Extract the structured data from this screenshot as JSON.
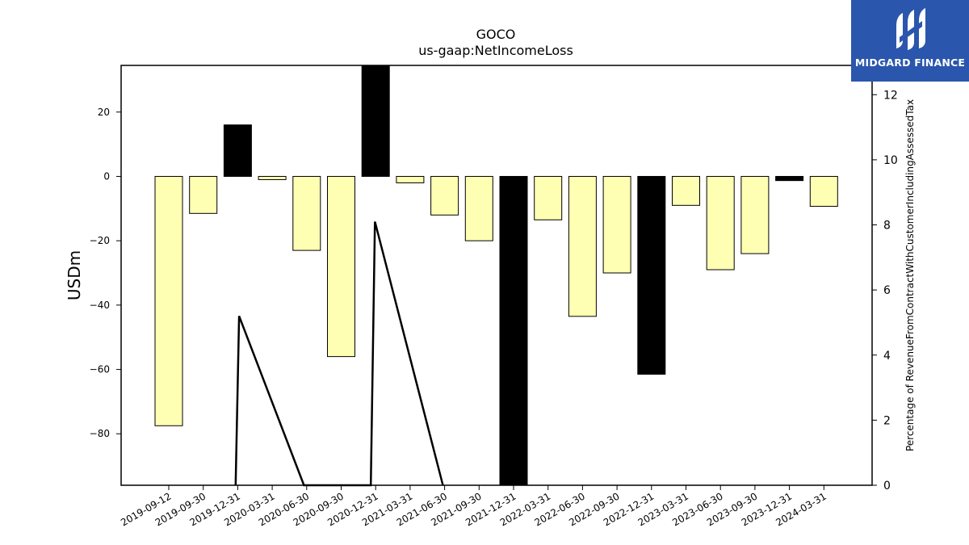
{
  "chart_data": {
    "type": "bar",
    "title": "GOCO",
    "subtitle": "us-gaap:NetIncomeLoss",
    "ylabel": "USDm",
    "y2label": "Percentage of RevenueFromContractWithCustomerIncludingAssessedTax",
    "ylim": [
      -96,
      34.5
    ],
    "y2lim": [
      0,
      12.9
    ],
    "yticks": [
      -80,
      -60,
      -40,
      -20,
      0,
      20
    ],
    "y2ticks": [
      0,
      2,
      4,
      6,
      8,
      10,
      12
    ],
    "categories": [
      "2019-09-12",
      "2019-09-30",
      "2019-12-31",
      "2020-03-31",
      "2020-06-30",
      "2020-09-30",
      "2020-12-31",
      "2021-03-31",
      "2021-06-30",
      "2021-09-30",
      "2021-12-31",
      "2022-03-31",
      "2022-06-30",
      "2022-09-30",
      "2022-12-31",
      "2023-03-31",
      "2023-06-30",
      "2023-09-30",
      "2023-12-31",
      "2024-03-31"
    ],
    "values": [
      -77.5,
      -11.5,
      16.0,
      -1.0,
      -23.0,
      -56.0,
      34.5,
      -2.0,
      -12.0,
      -20.0,
      -96.0,
      -13.5,
      -43.5,
      -30.0,
      -61.5,
      -9.0,
      -29.0,
      -24.0,
      -1.3,
      -9.3
    ],
    "bar_colors": [
      "#ffffb3",
      "#ffffb3",
      "#000000",
      "#ffffb3",
      "#ffffb3",
      "#ffffb3",
      "#000000",
      "#ffffb3",
      "#ffffb3",
      "#ffffb3",
      "#000000",
      "#ffffb3",
      "#ffffb3",
      "#ffffb3",
      "#000000",
      "#ffffb3",
      "#ffffb3",
      "#ffffb3",
      "#000000",
      "#ffffb3"
    ],
    "line_series": {
      "x": [
        "2019-12-31",
        "2019-12-31",
        "2020-03-31",
        "2020-12-31",
        "2020-12-31",
        "2021-03-31"
      ],
      "x_offsets": [
        -0.06,
        0.04,
        0.92,
        -0.14,
        -0.02,
        0.95
      ],
      "values": [
        0,
        5.2,
        0,
        0,
        8.1,
        0
      ]
    },
    "grid": false,
    "colors": {
      "bar_negative": "#ffffb3",
      "bar_highlight": "#000000",
      "line": "#000000"
    }
  },
  "logo": {
    "text": "MIDGARD FINANCE"
  }
}
